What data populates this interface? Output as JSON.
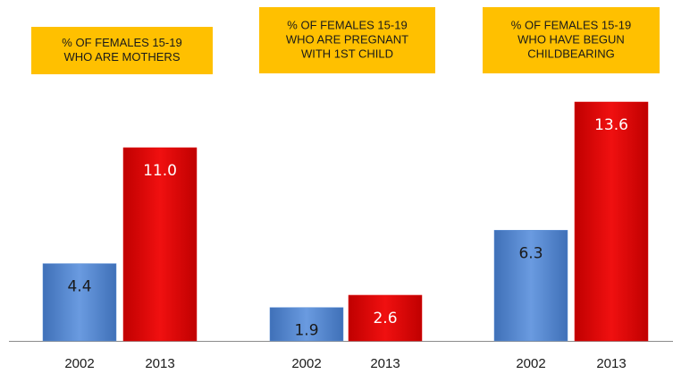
{
  "chart_data": [
    {
      "type": "bar",
      "title_lines": [
        "% OF FEMALES 15-19",
        "WHO ARE MOTHERS"
      ],
      "categories": [
        "2002",
        "2013"
      ],
      "values": [
        4.4,
        11.0
      ],
      "value_labels": [
        "4.4",
        "11.0"
      ],
      "colors": [
        "#5b8fd6",
        "#e00000"
      ],
      "label_colors": [
        "#1a1a1a",
        "#ffffff"
      ]
    },
    {
      "type": "bar",
      "title_lines": [
        "% OF FEMALES 15-19",
        "WHO ARE PREGNANT",
        "WITH 1ST CHILD"
      ],
      "categories": [
        "2002",
        "2013"
      ],
      "values": [
        1.9,
        2.6
      ],
      "value_labels": [
        "1.9",
        "2.6"
      ],
      "colors": [
        "#5b8fd6",
        "#e00000"
      ],
      "label_colors": [
        "#1a1a1a",
        "#ffffff"
      ]
    },
    {
      "type": "bar",
      "title_lines": [
        "% OF FEMALES 15-19",
        "WHO HAVE BEGUN",
        "CHILDBEARING"
      ],
      "categories": [
        "2002",
        "2013"
      ],
      "values": [
        6.3,
        13.6
      ],
      "value_labels": [
        "6.3",
        "13.6"
      ],
      "colors": [
        "#5b8fd6",
        "#e00000"
      ],
      "label_colors": [
        "#1a1a1a",
        "#ffffff"
      ]
    }
  ]
}
